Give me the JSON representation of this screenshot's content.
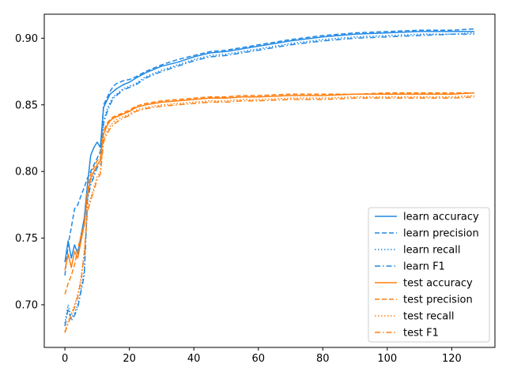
{
  "chart_data": {
    "type": "line",
    "title": "",
    "xlabel": "",
    "ylabel": "",
    "xlim": [
      -6.4,
      133.4
    ],
    "ylim": [
      0.668,
      0.918
    ],
    "xticks": [
      0,
      20,
      40,
      60,
      80,
      100,
      120
    ],
    "yticks": [
      0.7,
      0.75,
      0.8,
      0.85,
      0.9
    ],
    "xtick_labels": [
      "0",
      "20",
      "40",
      "60",
      "80",
      "100",
      "120"
    ],
    "ytick_labels": [
      "0.70",
      "0.75",
      "0.80",
      "0.85",
      "0.90"
    ],
    "grid": false,
    "legend_position": "lower-right",
    "colors": {
      "learn": "#1f88e5",
      "test": "#ff7f0e"
    },
    "series": [
      {
        "name": "learn accuracy",
        "group": "learn",
        "style": "solid",
        "x": [
          0,
          1,
          2,
          3,
          4,
          5,
          6,
          7,
          8,
          9,
          10,
          11,
          12,
          13,
          14,
          15,
          16,
          18,
          20,
          22,
          25,
          30,
          35,
          40,
          45,
          50,
          55,
          60,
          70,
          80,
          90,
          100,
          110,
          120,
          127
        ],
        "y": [
          0.732,
          0.748,
          0.735,
          0.745,
          0.738,
          0.752,
          0.765,
          0.79,
          0.812,
          0.818,
          0.822,
          0.818,
          0.848,
          0.853,
          0.858,
          0.86,
          0.862,
          0.865,
          0.867,
          0.87,
          0.874,
          0.879,
          0.882,
          0.886,
          0.889,
          0.89,
          0.892,
          0.894,
          0.898,
          0.901,
          0.903,
          0.904,
          0.905,
          0.905,
          0.905
        ]
      },
      {
        "name": "learn precision",
        "group": "learn",
        "style": "dashed",
        "x": [
          0,
          1,
          2,
          3,
          4,
          5,
          6,
          7,
          8,
          9,
          10,
          11,
          12,
          13,
          14,
          15,
          16,
          18,
          20,
          22,
          25,
          30,
          35,
          40,
          45,
          50,
          55,
          60,
          70,
          80,
          90,
          100,
          110,
          120,
          127
        ],
        "y": [
          0.722,
          0.745,
          0.758,
          0.772,
          0.775,
          0.782,
          0.788,
          0.795,
          0.8,
          0.805,
          0.81,
          0.815,
          0.85,
          0.855,
          0.86,
          0.864,
          0.866,
          0.868,
          0.869,
          0.871,
          0.875,
          0.88,
          0.884,
          0.887,
          0.89,
          0.891,
          0.893,
          0.895,
          0.899,
          0.902,
          0.904,
          0.905,
          0.906,
          0.906,
          0.907
        ]
      },
      {
        "name": "learn recall",
        "group": "learn",
        "style": "dotted",
        "x": [
          0,
          1,
          2,
          3,
          4,
          5,
          6,
          7,
          8,
          9,
          10,
          11,
          12,
          13,
          14,
          15,
          16,
          18,
          20,
          22,
          25,
          30,
          35,
          40,
          45,
          50,
          55,
          60,
          70,
          80,
          90,
          100,
          110,
          120,
          127
        ],
        "y": [
          0.686,
          0.7,
          0.69,
          0.694,
          0.7,
          0.712,
          0.725,
          0.78,
          0.792,
          0.798,
          0.805,
          0.808,
          0.838,
          0.846,
          0.852,
          0.856,
          0.858,
          0.862,
          0.864,
          0.866,
          0.871,
          0.876,
          0.88,
          0.884,
          0.887,
          0.888,
          0.89,
          0.892,
          0.896,
          0.899,
          0.901,
          0.902,
          0.903,
          0.903,
          0.904
        ]
      },
      {
        "name": "learn F1",
        "group": "learn",
        "style": "dashdot",
        "x": [
          0,
          1,
          2,
          3,
          4,
          5,
          6,
          7,
          8,
          9,
          10,
          11,
          12,
          13,
          14,
          15,
          16,
          18,
          20,
          22,
          25,
          30,
          35,
          40,
          45,
          50,
          55,
          60,
          70,
          80,
          90,
          100,
          110,
          120,
          127
        ],
        "y": [
          0.684,
          0.697,
          0.688,
          0.692,
          0.698,
          0.71,
          0.722,
          0.778,
          0.79,
          0.796,
          0.803,
          0.806,
          0.836,
          0.844,
          0.85,
          0.855,
          0.857,
          0.861,
          0.863,
          0.865,
          0.87,
          0.875,
          0.879,
          0.883,
          0.886,
          0.887,
          0.889,
          0.891,
          0.895,
          0.898,
          0.9,
          0.901,
          0.902,
          0.903,
          0.903
        ]
      },
      {
        "name": "test accuracy",
        "group": "test",
        "style": "solid",
        "x": [
          0,
          1,
          2,
          3,
          4,
          5,
          6,
          7,
          8,
          9,
          10,
          11,
          12,
          13,
          14,
          15,
          16,
          18,
          20,
          22,
          25,
          30,
          35,
          40,
          45,
          50,
          55,
          60,
          70,
          80,
          90,
          100,
          110,
          120,
          127
        ],
        "y": [
          0.726,
          0.738,
          0.728,
          0.74,
          0.735,
          0.748,
          0.76,
          0.782,
          0.795,
          0.8,
          0.805,
          0.808,
          0.828,
          0.834,
          0.838,
          0.84,
          0.841,
          0.843,
          0.845,
          0.848,
          0.85,
          0.852,
          0.853,
          0.854,
          0.855,
          0.855,
          0.856,
          0.856,
          0.857,
          0.857,
          0.858,
          0.858,
          0.858,
          0.858,
          0.859
        ]
      },
      {
        "name": "test precision",
        "group": "test",
        "style": "dashed",
        "x": [
          0,
          1,
          2,
          3,
          4,
          5,
          6,
          7,
          8,
          9,
          10,
          11,
          12,
          13,
          14,
          15,
          16,
          18,
          20,
          22,
          25,
          30,
          35,
          40,
          45,
          50,
          55,
          60,
          70,
          80,
          90,
          100,
          110,
          120,
          127
        ],
        "y": [
          0.708,
          0.716,
          0.722,
          0.73,
          0.742,
          0.752,
          0.76,
          0.786,
          0.798,
          0.803,
          0.808,
          0.81,
          0.83,
          0.836,
          0.839,
          0.841,
          0.842,
          0.844,
          0.846,
          0.849,
          0.851,
          0.853,
          0.854,
          0.855,
          0.856,
          0.856,
          0.857,
          0.857,
          0.858,
          0.858,
          0.858,
          0.859,
          0.859,
          0.859,
          0.859
        ]
      },
      {
        "name": "test recall",
        "group": "test",
        "style": "dotted",
        "x": [
          0,
          1,
          2,
          3,
          4,
          5,
          6,
          7,
          8,
          9,
          10,
          11,
          12,
          13,
          14,
          15,
          16,
          18,
          20,
          22,
          25,
          30,
          35,
          40,
          45,
          50,
          55,
          60,
          70,
          80,
          90,
          100,
          110,
          120,
          127
        ],
        "y": [
          0.68,
          0.688,
          0.693,
          0.7,
          0.708,
          0.72,
          0.74,
          0.772,
          0.78,
          0.788,
          0.796,
          0.8,
          0.824,
          0.83,
          0.834,
          0.837,
          0.839,
          0.841,
          0.843,
          0.846,
          0.848,
          0.85,
          0.851,
          0.852,
          0.853,
          0.853,
          0.854,
          0.854,
          0.855,
          0.855,
          0.856,
          0.856,
          0.856,
          0.856,
          0.857
        ]
      },
      {
        "name": "test F1",
        "group": "test",
        "style": "dashdot",
        "x": [
          0,
          1,
          2,
          3,
          4,
          5,
          6,
          7,
          8,
          9,
          10,
          11,
          12,
          13,
          14,
          15,
          16,
          18,
          20,
          22,
          25,
          30,
          35,
          40,
          45,
          50,
          55,
          60,
          70,
          80,
          90,
          100,
          110,
          120,
          127
        ],
        "y": [
          0.679,
          0.686,
          0.692,
          0.698,
          0.706,
          0.718,
          0.738,
          0.77,
          0.778,
          0.786,
          0.794,
          0.798,
          0.822,
          0.828,
          0.832,
          0.835,
          0.837,
          0.84,
          0.842,
          0.845,
          0.847,
          0.849,
          0.85,
          0.851,
          0.852,
          0.852,
          0.853,
          0.853,
          0.854,
          0.854,
          0.855,
          0.855,
          0.855,
          0.855,
          0.856
        ]
      }
    ]
  }
}
